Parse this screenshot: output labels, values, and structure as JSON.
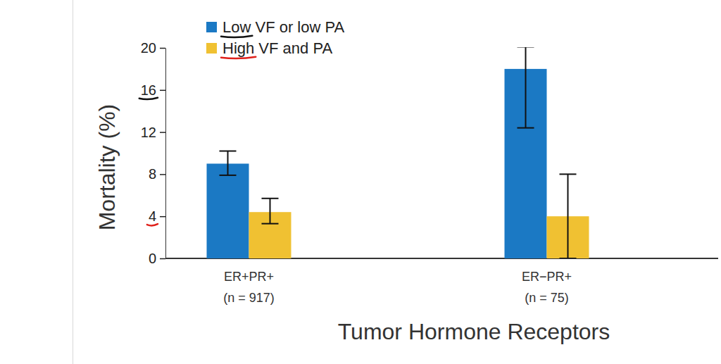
{
  "chart_data": {
    "type": "bar",
    "x_label": "Tumor Hormone Receptors",
    "y_label": "Mortality (%)",
    "categories": [
      "ER+PR+\n(n = 917)",
      "ER−PR+\n(n = 75)"
    ],
    "series": [
      {
        "name": "Low VF or low PA",
        "color": "#1b79c4",
        "values": [
          9.0,
          18.0
        ],
        "ci_low": [
          7.9,
          12.4
        ],
        "ci_high": [
          10.2,
          20.1
        ]
      },
      {
        "name": "High VF and PA",
        "color": "#f0c132",
        "values": [
          4.4,
          4.0
        ],
        "ci_low": [
          3.3,
          0
        ],
        "ci_high": [
          5.7,
          8.0
        ]
      }
    ],
    "ylim": [
      0,
      20
    ],
    "yticks": [
      0,
      4,
      8,
      12,
      16,
      20
    ],
    "legend": "upper left",
    "grid": false
  }
}
